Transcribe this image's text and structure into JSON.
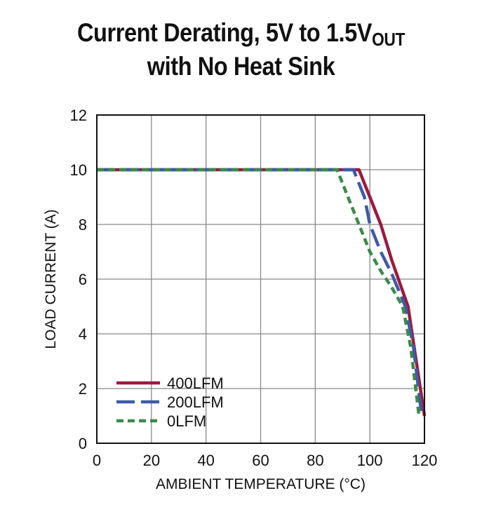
{
  "chart_data": {
    "type": "line",
    "title_line1": "Current Derating, 5V to 1.5V",
    "title_subscript": "OUT",
    "title_line2": "with No Heat Sink",
    "xlabel": "AMBIENT TEMPERATURE (°C)",
    "ylabel": "LOAD CURRENT (A)",
    "xlim": [
      0,
      120
    ],
    "ylim": [
      0,
      12
    ],
    "xticks": [
      0,
      20,
      40,
      60,
      80,
      100,
      120
    ],
    "yticks": [
      0,
      2,
      4,
      6,
      8,
      10,
      12
    ],
    "grid": true,
    "legend_position": "bottom-left",
    "series": [
      {
        "name": "400LFM",
        "color": "#9b1b3e",
        "dash": "solid",
        "points": [
          [
            0,
            10
          ],
          [
            96,
            10
          ],
          [
            100,
            9
          ],
          [
            104,
            8
          ],
          [
            108,
            6.7
          ],
          [
            114,
            5
          ],
          [
            117,
            3
          ],
          [
            120,
            1
          ]
        ]
      },
      {
        "name": "200LFM",
        "color": "#3e5aa8",
        "dash": "long-dash",
        "points": [
          [
            0,
            10
          ],
          [
            94,
            10
          ],
          [
            98,
            9
          ],
          [
            100,
            8
          ],
          [
            104,
            7
          ],
          [
            108,
            6.2
          ],
          [
            113,
            5
          ],
          [
            116,
            3.5
          ],
          [
            119,
            1
          ]
        ]
      },
      {
        "name": "0LFM",
        "color": "#3c8a49",
        "dash": "short-dash",
        "points": [
          [
            0,
            10
          ],
          [
            88,
            10
          ],
          [
            92,
            9
          ],
          [
            96,
            8
          ],
          [
            100,
            7
          ],
          [
            104,
            6.3
          ],
          [
            108,
            5.7
          ],
          [
            112,
            5
          ],
          [
            115,
            3.5
          ],
          [
            118,
            1
          ]
        ]
      }
    ]
  }
}
